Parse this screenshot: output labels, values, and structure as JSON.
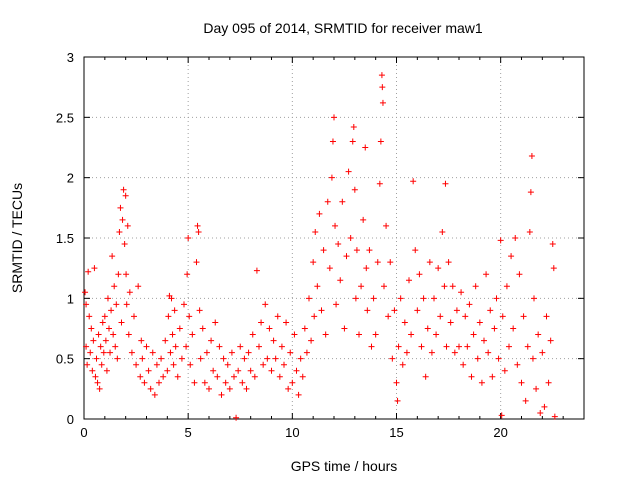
{
  "chart_data": {
    "type": "scatter",
    "title": "Day 095 of 2014, SRMTID for receiver maw1",
    "xlabel": "GPS time / hours",
    "ylabel": "SRMTID / TECUs",
    "xlim": [
      0,
      24
    ],
    "ylim": [
      0,
      3
    ],
    "xticks": [
      0,
      5,
      10,
      15,
      20
    ],
    "yticks": [
      0,
      0.5,
      1,
      1.5,
      2,
      2.5,
      3
    ],
    "xtick_labels": [
      "0",
      "5",
      "10",
      "15",
      "20"
    ],
    "ytick_labels": [
      "0",
      "0.5",
      "1",
      "1.5",
      "2",
      "2.5",
      "3"
    ],
    "grid": true,
    "marker": "+",
    "series": [
      {
        "name": "SRMTID",
        "color": "#ff0000",
        "points": [
          [
            0.05,
            1.05
          ],
          [
            0.1,
            0.95
          ],
          [
            0.1,
            0.6
          ],
          [
            0.15,
            0.45
          ],
          [
            0.2,
            1.22
          ],
          [
            0.25,
            0.85
          ],
          [
            0.3,
            0.55
          ],
          [
            0.35,
            0.75
          ],
          [
            0.4,
            0.4
          ],
          [
            0.45,
            0.65
          ],
          [
            0.5,
            1.25
          ],
          [
            0.55,
            0.35
          ],
          [
            0.6,
            0.5
          ],
          [
            0.65,
            0.3
          ],
          [
            0.7,
            0.7
          ],
          [
            0.75,
            0.25
          ],
          [
            0.8,
            0.6
          ],
          [
            0.85,
            0.45
          ],
          [
            0.9,
            0.8
          ],
          [
            0.95,
            0.55
          ],
          [
            1.0,
            0.85
          ],
          [
            1.05,
            0.65
          ],
          [
            1.1,
            0.4
          ],
          [
            1.15,
            1.0
          ],
          [
            1.2,
            0.75
          ],
          [
            1.25,
            0.55
          ],
          [
            1.3,
            0.9
          ],
          [
            1.35,
            1.35
          ],
          [
            1.4,
            0.7
          ],
          [
            1.45,
            1.1
          ],
          [
            1.5,
            0.6
          ],
          [
            1.55,
            0.95
          ],
          [
            1.6,
            0.5
          ],
          [
            1.65,
            1.2
          ],
          [
            1.7,
            1.55
          ],
          [
            1.75,
            1.75
          ],
          [
            1.8,
            0.8
          ],
          [
            1.85,
            1.65
          ],
          [
            1.9,
            1.9
          ],
          [
            1.95,
            1.45
          ],
          [
            2.0,
            1.85
          ],
          [
            2.02,
            1.2
          ],
          [
            2.05,
            0.95
          ],
          [
            2.1,
            1.6
          ],
          [
            2.15,
            0.7
          ],
          [
            2.2,
            1.05
          ],
          [
            2.3,
            0.55
          ],
          [
            2.4,
            0.85
          ],
          [
            2.5,
            0.45
          ],
          [
            2.6,
            1.1
          ],
          [
            2.7,
            0.35
          ],
          [
            2.75,
            0.65
          ],
          [
            2.8,
            0.5
          ],
          [
            2.9,
            0.3
          ],
          [
            3.0,
            0.6
          ],
          [
            3.1,
            0.4
          ],
          [
            3.2,
            0.25
          ],
          [
            3.3,
            0.55
          ],
          [
            3.4,
            0.2
          ],
          [
            3.5,
            0.45
          ],
          [
            3.6,
            0.3
          ],
          [
            3.7,
            0.5
          ],
          [
            3.8,
            0.35
          ],
          [
            3.9,
            0.65
          ],
          [
            4.0,
            0.4
          ],
          [
            4.05,
            0.85
          ],
          [
            4.1,
            1.02
          ],
          [
            4.15,
            0.55
          ],
          [
            4.2,
            1.0
          ],
          [
            4.25,
            0.7
          ],
          [
            4.3,
            0.45
          ],
          [
            4.35,
            0.9
          ],
          [
            4.4,
            0.6
          ],
          [
            4.5,
            0.35
          ],
          [
            4.6,
            0.75
          ],
          [
            4.7,
            0.5
          ],
          [
            4.8,
            0.95
          ],
          [
            4.9,
            0.6
          ],
          [
            4.95,
            1.2
          ],
          [
            5.0,
            1.5
          ],
          [
            5.05,
            0.85
          ],
          [
            5.1,
            0.45
          ],
          [
            5.2,
            0.7
          ],
          [
            5.3,
            0.3
          ],
          [
            5.4,
            1.3
          ],
          [
            5.45,
            1.6
          ],
          [
            5.5,
            1.55
          ],
          [
            5.55,
            0.9
          ],
          [
            5.6,
            0.5
          ],
          [
            5.7,
            0.75
          ],
          [
            5.8,
            0.3
          ],
          [
            5.9,
            0.55
          ],
          [
            6.0,
            0.25
          ],
          [
            6.1,
            0.65
          ],
          [
            6.2,
            0.4
          ],
          [
            6.3,
            0.8
          ],
          [
            6.4,
            0.35
          ],
          [
            6.5,
            0.6
          ],
          [
            6.6,
            0.2
          ],
          [
            6.7,
            0.5
          ],
          [
            6.8,
            0.3
          ],
          [
            6.9,
            0.45
          ],
          [
            7.0,
            0.25
          ],
          [
            7.1,
            0.55
          ],
          [
            7.2,
            0.35
          ],
          [
            7.3,
            0.01
          ],
          [
            7.4,
            0.4
          ],
          [
            7.5,
            0.6
          ],
          [
            7.6,
            0.3
          ],
          [
            7.7,
            0.5
          ],
          [
            7.8,
            0.25
          ],
          [
            7.9,
            0.55
          ],
          [
            8.0,
            0.4
          ],
          [
            8.1,
            0.7
          ],
          [
            8.2,
            0.35
          ],
          [
            8.3,
            1.23
          ],
          [
            8.4,
            0.6
          ],
          [
            8.5,
            0.8
          ],
          [
            8.6,
            0.45
          ],
          [
            8.7,
            0.95
          ],
          [
            8.8,
            0.5
          ],
          [
            8.9,
            0.75
          ],
          [
            9.0,
            0.4
          ],
          [
            9.1,
            0.65
          ],
          [
            9.2,
            0.5
          ],
          [
            9.3,
            0.85
          ],
          [
            9.4,
            0.35
          ],
          [
            9.5,
            0.6
          ],
          [
            9.6,
            0.45
          ],
          [
            9.7,
            0.8
          ],
          [
            9.8,
            0.25
          ],
          [
            9.9,
            0.55
          ],
          [
            10.0,
            0.3
          ],
          [
            10.1,
            0.7
          ],
          [
            10.2,
            0.4
          ],
          [
            10.3,
            0.2
          ],
          [
            10.4,
            0.5
          ],
          [
            10.5,
            0.35
          ],
          [
            10.6,
            0.75
          ],
          [
            10.7,
            0.55
          ],
          [
            10.8,
            1.0
          ],
          [
            10.9,
            0.65
          ],
          [
            11.0,
            1.3
          ],
          [
            11.05,
            0.85
          ],
          [
            11.1,
            1.55
          ],
          [
            11.2,
            1.1
          ],
          [
            11.3,
            1.7
          ],
          [
            11.4,
            0.9
          ],
          [
            11.5,
            1.4
          ],
          [
            11.6,
            0.7
          ],
          [
            11.7,
            1.8
          ],
          [
            11.8,
            1.25
          ],
          [
            11.9,
            2.0
          ],
          [
            11.95,
            2.3
          ],
          [
            12.0,
            2.5
          ],
          [
            12.05,
            1.6
          ],
          [
            12.1,
            0.95
          ],
          [
            12.2,
            1.45
          ],
          [
            12.3,
            1.15
          ],
          [
            12.4,
            1.8
          ],
          [
            12.5,
            0.75
          ],
          [
            12.6,
            1.35
          ],
          [
            12.7,
            2.05
          ],
          [
            12.8,
            1.5
          ],
          [
            12.9,
            2.3
          ],
          [
            12.95,
            2.42
          ],
          [
            13.0,
            1.9
          ],
          [
            13.05,
            1.0
          ],
          [
            13.1,
            1.4
          ],
          [
            13.2,
            0.7
          ],
          [
            13.3,
            1.1
          ],
          [
            13.4,
            1.65
          ],
          [
            13.5,
            2.25
          ],
          [
            13.55,
            1.25
          ],
          [
            13.6,
            0.9
          ],
          [
            13.7,
            1.4
          ],
          [
            13.8,
            0.6
          ],
          [
            13.9,
            1.0
          ],
          [
            14.0,
            0.7
          ],
          [
            14.1,
            1.3
          ],
          [
            14.2,
            1.95
          ],
          [
            14.25,
            2.3
          ],
          [
            14.3,
            2.85
          ],
          [
            14.32,
            2.75
          ],
          [
            14.35,
            2.62
          ],
          [
            14.4,
            1.1
          ],
          [
            14.5,
            1.6
          ],
          [
            14.6,
            0.85
          ],
          [
            14.7,
            1.3
          ],
          [
            14.8,
            0.5
          ],
          [
            14.9,
            0.9
          ],
          [
            15.0,
            0.3
          ],
          [
            15.05,
            0.15
          ],
          [
            15.1,
            0.6
          ],
          [
            15.2,
            1.0
          ],
          [
            15.3,
            0.45
          ],
          [
            15.4,
            0.8
          ],
          [
            15.5,
            0.55
          ],
          [
            15.6,
            1.15
          ],
          [
            15.7,
            0.7
          ],
          [
            15.8,
            1.97
          ],
          [
            15.9,
            1.4
          ],
          [
            16.0,
            0.9
          ],
          [
            16.1,
            1.2
          ],
          [
            16.2,
            0.6
          ],
          [
            16.3,
            1.0
          ],
          [
            16.4,
            0.35
          ],
          [
            16.5,
            0.75
          ],
          [
            16.6,
            1.3
          ],
          [
            16.7,
            0.55
          ],
          [
            16.8,
            1.0
          ],
          [
            16.9,
            0.7
          ],
          [
            17.0,
            1.25
          ],
          [
            17.1,
            0.85
          ],
          [
            17.2,
            1.55
          ],
          [
            17.3,
            1.1
          ],
          [
            17.35,
            1.95
          ],
          [
            17.4,
            0.6
          ],
          [
            17.5,
            1.3
          ],
          [
            17.6,
            0.8
          ],
          [
            17.7,
            1.1
          ],
          [
            17.8,
            0.55
          ],
          [
            17.9,
            0.9
          ],
          [
            18.0,
            0.6
          ],
          [
            18.1,
            1.05
          ],
          [
            18.2,
            0.45
          ],
          [
            18.3,
            0.85
          ],
          [
            18.4,
            0.6
          ],
          [
            18.5,
            0.95
          ],
          [
            18.6,
            0.35
          ],
          [
            18.7,
            0.7
          ],
          [
            18.8,
            1.1
          ],
          [
            18.9,
            0.5
          ],
          [
            19.0,
            0.8
          ],
          [
            19.1,
            0.3
          ],
          [
            19.2,
            0.65
          ],
          [
            19.3,
            1.2
          ],
          [
            19.4,
            0.55
          ],
          [
            19.5,
            0.9
          ],
          [
            19.6,
            0.35
          ],
          [
            19.7,
            0.75
          ],
          [
            19.8,
            1.0
          ],
          [
            19.9,
            0.5
          ],
          [
            20.0,
            1.48
          ],
          [
            20.05,
            0.03
          ],
          [
            20.1,
            0.85
          ],
          [
            20.2,
            0.4
          ],
          [
            20.3,
            1.1
          ],
          [
            20.4,
            0.6
          ],
          [
            20.5,
            1.35
          ],
          [
            20.6,
            0.75
          ],
          [
            20.7,
            1.5
          ],
          [
            20.8,
            0.45
          ],
          [
            20.9,
            1.2
          ],
          [
            21.0,
            0.3
          ],
          [
            21.1,
            0.85
          ],
          [
            21.2,
            0.15
          ],
          [
            21.3,
            0.6
          ],
          [
            21.4,
            1.55
          ],
          [
            21.45,
            1.88
          ],
          [
            21.5,
            2.18
          ],
          [
            21.55,
            0.5
          ],
          [
            21.6,
            1.0
          ],
          [
            21.7,
            0.25
          ],
          [
            21.8,
            0.7
          ],
          [
            21.9,
            0.05
          ],
          [
            22.0,
            0.55
          ],
          [
            22.1,
            0.1
          ],
          [
            22.2,
            0.85
          ],
          [
            22.3,
            0.3
          ],
          [
            22.4,
            0.65
          ],
          [
            22.5,
            1.45
          ],
          [
            22.55,
            1.25
          ],
          [
            22.6,
            0.02
          ]
        ]
      }
    ]
  }
}
